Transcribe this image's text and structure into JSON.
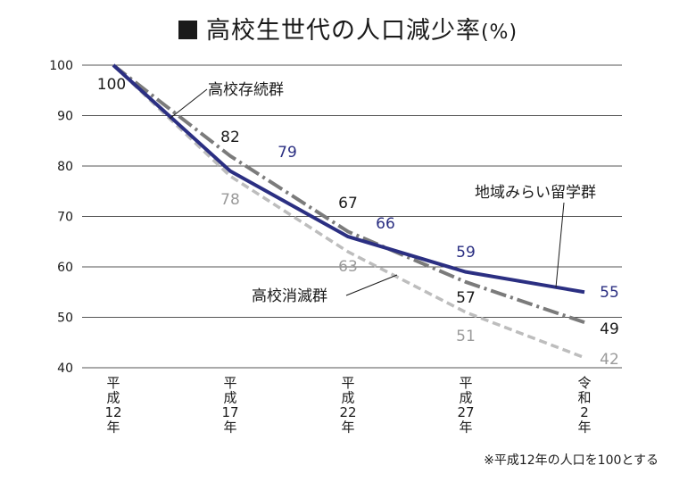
{
  "title": {
    "main": "高校生世代の人口減少率",
    "unit": "(%)"
  },
  "footnote": "※平成12年の人口を100とする",
  "colors": {
    "chiiki": "#2b2f82",
    "sonzoku": "#7b7b7b",
    "shoumetsu": "#bdbdbd",
    "grid": "#555555",
    "text": "#1a1a1a"
  },
  "chart_data": {
    "type": "line",
    "x_labels": [
      [
        "平",
        "成",
        "12",
        "年"
      ],
      [
        "平",
        "成",
        "17",
        "年"
      ],
      [
        "平",
        "成",
        "22",
        "年"
      ],
      [
        "平",
        "成",
        "27",
        "年"
      ],
      [
        "令",
        "和",
        "2",
        "年"
      ]
    ],
    "ylim": [
      40,
      100
    ],
    "yticks": [
      40,
      50,
      60,
      70,
      80,
      90,
      100
    ],
    "grid": true,
    "series": [
      {
        "key": "sonzoku",
        "name": "高校存続群",
        "values": [
          100,
          82,
          67,
          57,
          49
        ],
        "labels": [
          "100",
          "82",
          "67",
          "57",
          "49"
        ],
        "style": "dash-dot"
      },
      {
        "key": "shoumetsu",
        "name": "高校消滅群",
        "values": [
          100,
          78,
          63,
          51,
          42
        ],
        "labels": [
          "",
          "78",
          "63",
          "51",
          "42"
        ],
        "style": "dashed"
      },
      {
        "key": "chiiki",
        "name": "地域みらい留学群",
        "values": [
          100,
          79,
          66,
          59,
          55
        ],
        "labels": [
          "",
          "79",
          "66",
          "59",
          "55"
        ],
        "style": "solid"
      }
    ]
  }
}
